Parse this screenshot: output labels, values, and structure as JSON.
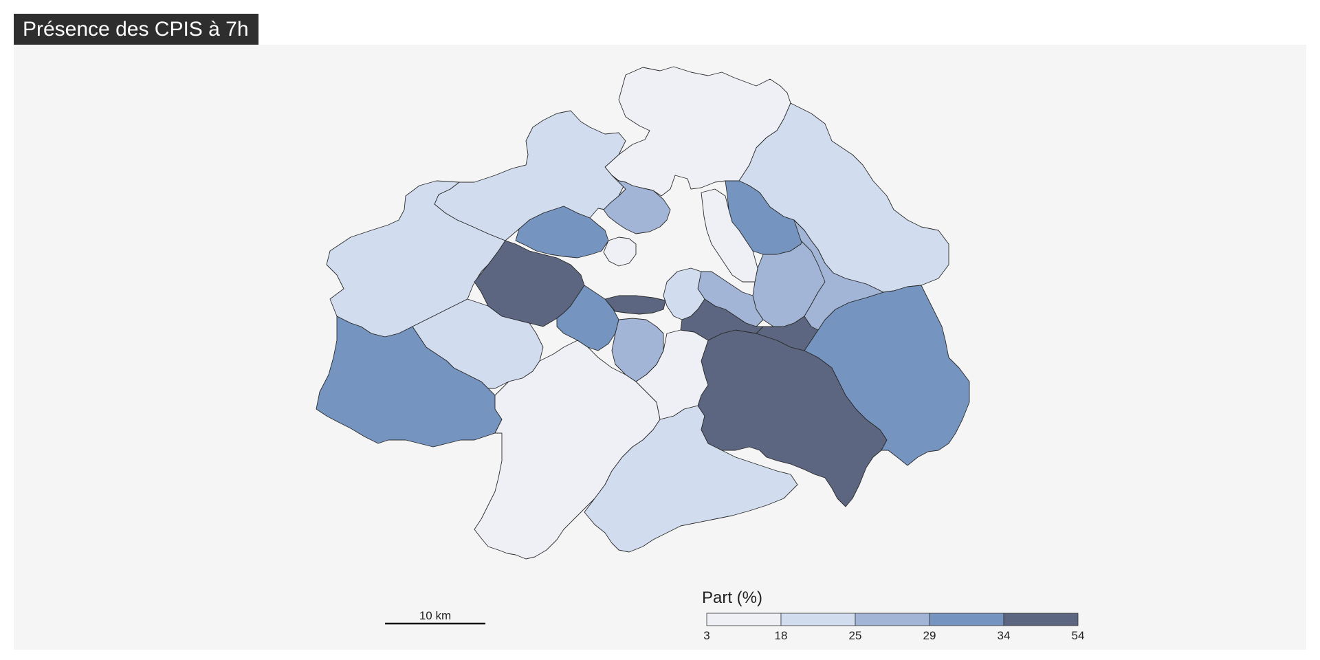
{
  "title": "Présence des CPIS à 7h",
  "legend": {
    "title": "Part (%)",
    "breaks": [
      "3",
      "18",
      "25",
      "29",
      "34",
      "54"
    ],
    "colors": [
      "#eef0f5",
      "#d1dcef",
      "#a2b5d6",
      "#7595c0",
      "#5c6680"
    ]
  },
  "scale_bar": {
    "label": "10 km"
  },
  "map_data": {
    "variable": "Part (%)",
    "classes": [
      {
        "range": [
          3,
          18
        ],
        "color": "#eef0f5"
      },
      {
        "range": [
          18,
          25
        ],
        "color": "#d1dcef"
      },
      {
        "range": [
          25,
          29
        ],
        "color": "#a2b5d6"
      },
      {
        "range": [
          29,
          34
        ],
        "color": "#7595c0"
      },
      {
        "range": [
          34,
          54
        ],
        "color": "#5c6680"
      }
    ],
    "regions": [
      {
        "id": "nord",
        "class": 0
      },
      {
        "id": "nord-ouest",
        "class": 1
      },
      {
        "id": "nord-est",
        "class": 1
      },
      {
        "id": "ouest",
        "class": 1
      },
      {
        "id": "sud-ouest",
        "class": 3
      },
      {
        "id": "ouest-centre",
        "class": 1
      },
      {
        "id": "sud",
        "class": 0
      },
      {
        "id": "sud-centre",
        "class": 1
      },
      {
        "id": "sud-est-grand",
        "class": 4
      },
      {
        "id": "est",
        "class": 3
      },
      {
        "id": "ouest-fonce",
        "class": 4
      },
      {
        "id": "nord-centre-1",
        "class": 2
      },
      {
        "id": "nord-centre-2",
        "class": 3
      },
      {
        "id": "nord-est-centre",
        "class": 3
      },
      {
        "id": "est-centre",
        "class": 2
      },
      {
        "id": "centre",
        "class": 4
      },
      {
        "id": "centre-est-fonce",
        "class": 4
      },
      {
        "id": "centre-ouest",
        "class": 3
      },
      {
        "id": "centre-sud",
        "class": 0
      },
      {
        "id": "petit-centre-1",
        "class": 0
      },
      {
        "id": "petit-centre-2",
        "class": 2
      },
      {
        "id": "petit-centre-3",
        "class": 1
      },
      {
        "id": "enclave",
        "class": 0
      },
      {
        "id": "bande-fonce",
        "class": 4
      },
      {
        "id": "ouest-sud-centre",
        "class": 2
      },
      {
        "id": "nord-est-bande",
        "class": 2
      }
    ]
  }
}
